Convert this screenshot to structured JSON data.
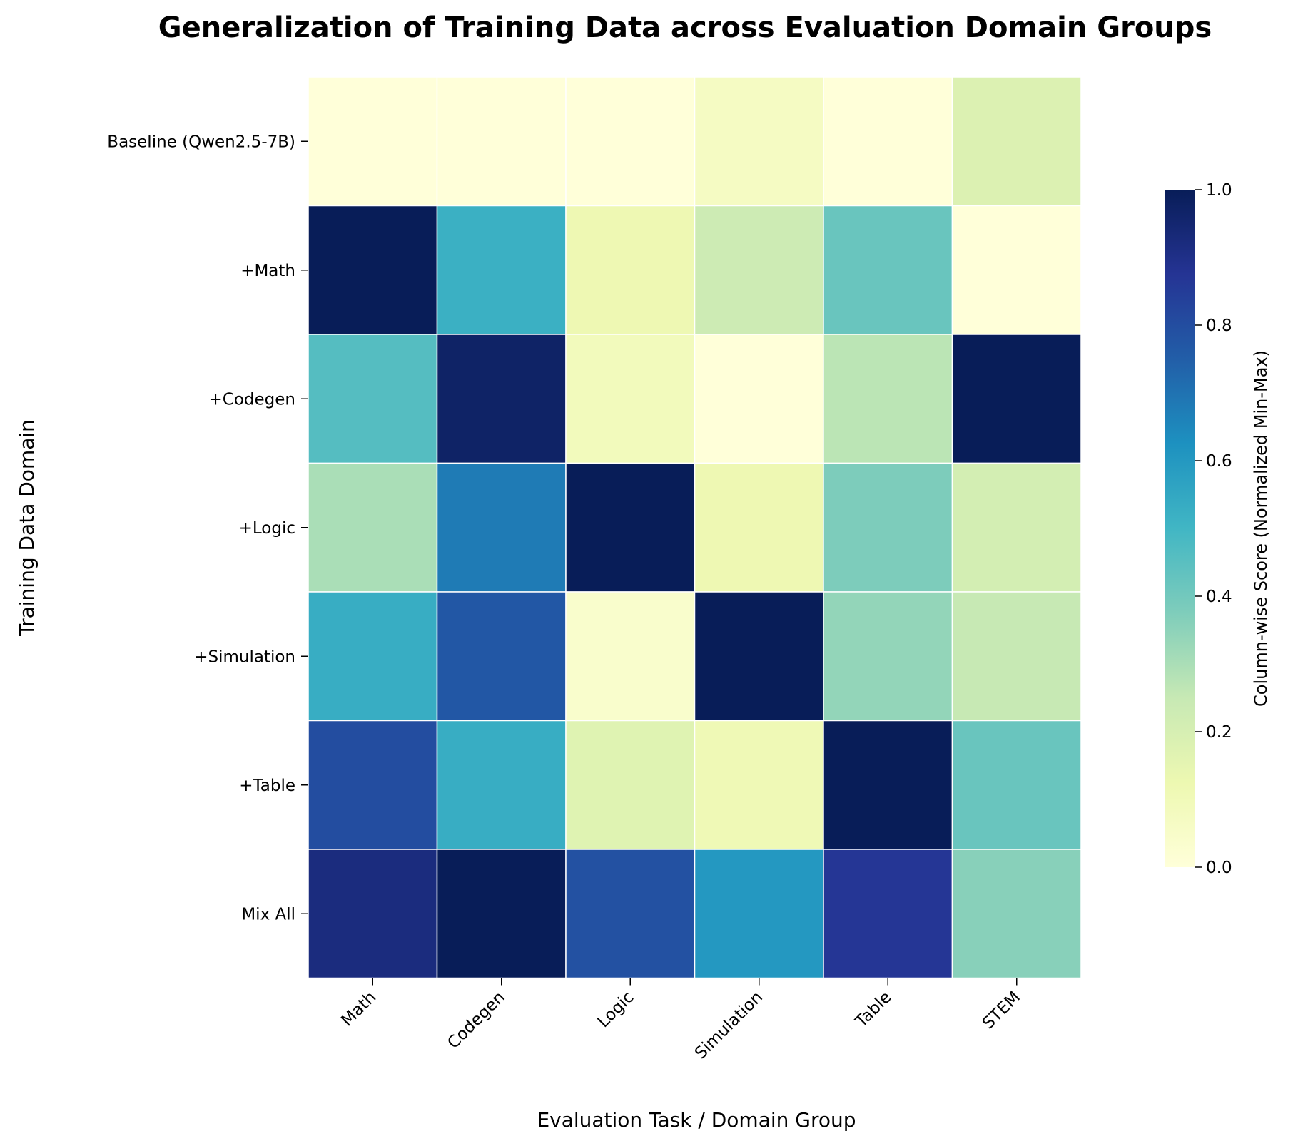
{
  "chart_data": {
    "type": "heatmap",
    "title": "Generalization of Training Data across Evaluation Domain Groups",
    "xlabel": "Evaluation Task / Domain Group",
    "ylabel": "Training Data Domain",
    "x_categories": [
      "Math",
      "Codegen",
      "Logic",
      "Simulation",
      "Table",
      "STEM"
    ],
    "y_categories": [
      "Baseline (Qwen2.5-7B)",
      "+Math",
      "+Codegen",
      "+Logic",
      "+Simulation",
      "+Table",
      "Mix All"
    ],
    "values": [
      [
        0.0,
        0.0,
        0.0,
        0.07,
        0.0,
        0.18
      ],
      [
        1.0,
        0.52,
        0.12,
        0.23,
        0.42,
        0.0
      ],
      [
        0.46,
        0.97,
        0.09,
        0.0,
        0.27,
        1.0
      ],
      [
        0.3,
        0.68,
        1.0,
        0.12,
        0.38,
        0.21
      ],
      [
        0.53,
        0.77,
        0.04,
        1.0,
        0.34,
        0.25
      ],
      [
        0.8,
        0.53,
        0.17,
        0.11,
        1.0,
        0.42
      ],
      [
        0.92,
        1.0,
        0.79,
        0.6,
        0.87,
        0.36
      ]
    ],
    "colorbar": {
      "label": "Column-wise Score (Normalized Min-Max)",
      "range": [
        0.0,
        1.0
      ],
      "ticks": [
        "0.0",
        "0.2",
        "0.4",
        "0.6",
        "0.8",
        "1.0"
      ],
      "colormap": "YlGnBu"
    }
  }
}
